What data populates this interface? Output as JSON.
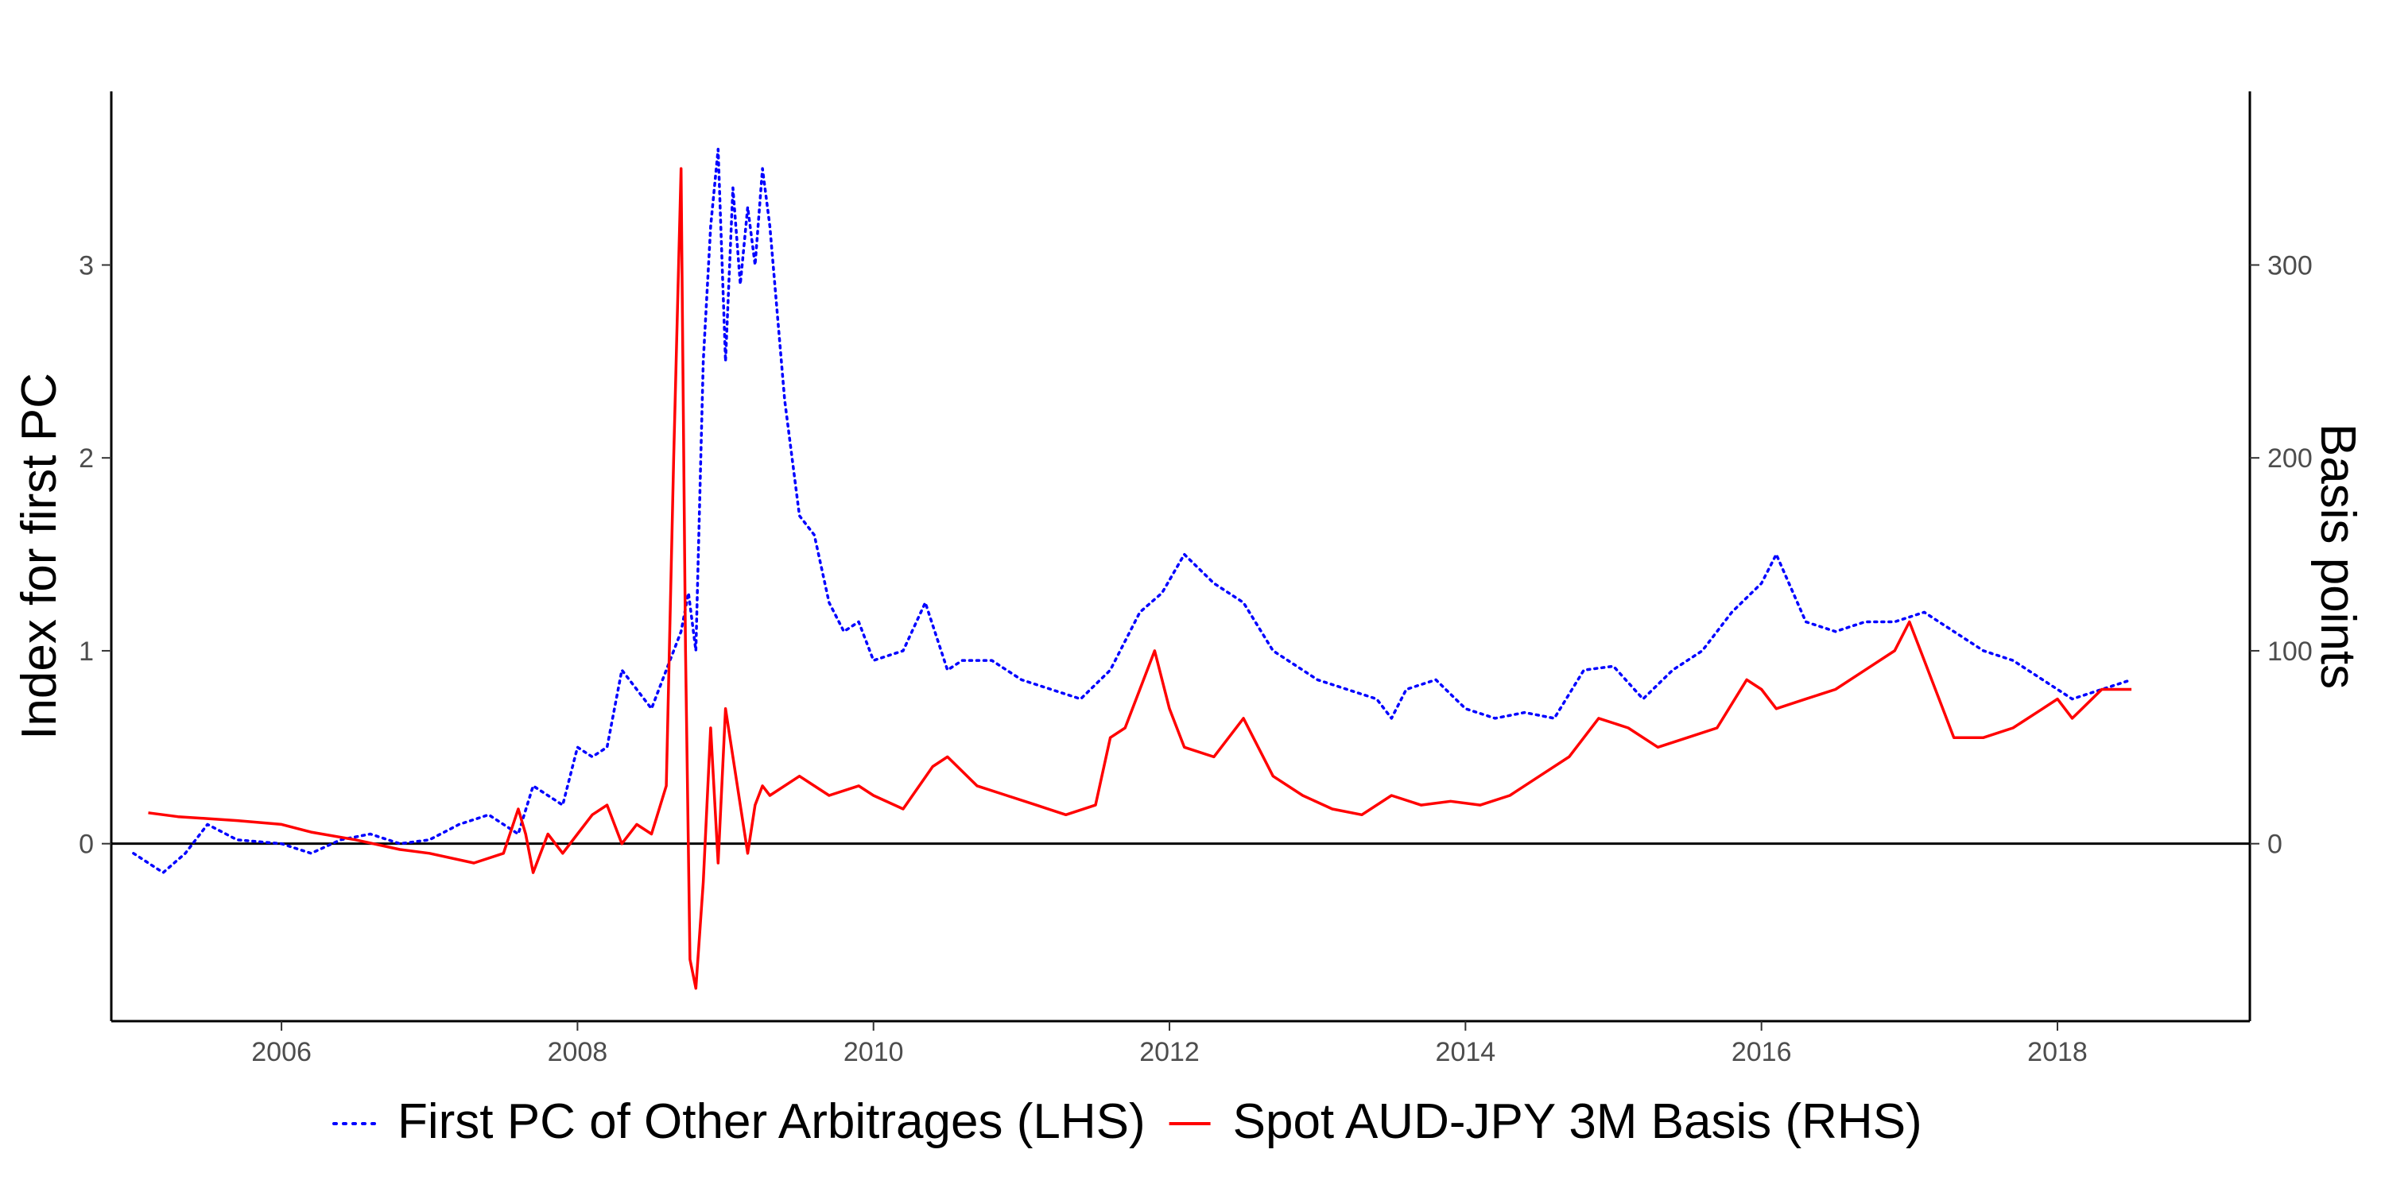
{
  "chart_data": {
    "type": "line",
    "title": "",
    "xlabel": "",
    "ylabel_left": "Index for first PC",
    "ylabel_right": "Basis points",
    "xlim": [
      2004.85,
      2019.3
    ],
    "ylim_left": [
      -0.92,
      3.9
    ],
    "ylim_right": [
      -92,
      390
    ],
    "x_ticks": [
      2006,
      2008,
      2010,
      2012,
      2014,
      2016,
      2018
    ],
    "x_tick_labels": [
      "2006",
      "2008",
      "2010",
      "2012",
      "2014",
      "2016",
      "2018"
    ],
    "y_ticks_left": [
      0,
      1,
      2,
      3
    ],
    "y_tick_labels_left": [
      "0",
      "1",
      "2",
      "3"
    ],
    "y_ticks_right": [
      0,
      100,
      200,
      300
    ],
    "y_tick_labels_right": [
      "0",
      "100",
      "200",
      "300"
    ],
    "reference_line_y": 0,
    "grid": false,
    "legend_position": "bottom",
    "series": [
      {
        "name": "First PC of Other Arbitrages (LHS)",
        "axis": "left",
        "color": "#0000ff",
        "style": "dotted",
        "x": [
          2005.0,
          2005.2,
          2005.35,
          2005.5,
          2005.7,
          2006.0,
          2006.2,
          2006.4,
          2006.6,
          2006.8,
          2007.0,
          2007.2,
          2007.4,
          2007.6,
          2007.7,
          2007.8,
          2007.9,
          2008.0,
          2008.1,
          2008.2,
          2008.3,
          2008.4,
          2008.5,
          2008.6,
          2008.7,
          2008.75,
          2008.8,
          2008.85,
          2008.9,
          2008.95,
          2009.0,
          2009.05,
          2009.1,
          2009.15,
          2009.2,
          2009.25,
          2009.3,
          2009.4,
          2009.5,
          2009.6,
          2009.7,
          2009.8,
          2009.9,
          2010.0,
          2010.2,
          2010.35,
          2010.5,
          2010.6,
          2010.8,
          2011.0,
          2011.2,
          2011.4,
          2011.6,
          2011.8,
          2011.95,
          2012.1,
          2012.3,
          2012.5,
          2012.7,
          2012.9,
          2013.0,
          2013.2,
          2013.4,
          2013.5,
          2013.6,
          2013.8,
          2014.0,
          2014.2,
          2014.4,
          2014.6,
          2014.8,
          2015.0,
          2015.2,
          2015.4,
          2015.6,
          2015.8,
          2016.0,
          2016.1,
          2016.3,
          2016.5,
          2016.7,
          2016.9,
          2017.1,
          2017.3,
          2017.5,
          2017.7,
          2017.9,
          2018.1,
          2018.3,
          2018.5
        ],
        "y": [
          -0.05,
          -0.15,
          -0.05,
          0.1,
          0.02,
          0.0,
          -0.05,
          0.02,
          0.05,
          0.0,
          0.02,
          0.1,
          0.15,
          0.05,
          0.3,
          0.25,
          0.2,
          0.5,
          0.45,
          0.5,
          0.9,
          0.8,
          0.7,
          0.9,
          1.1,
          1.3,
          1.0,
          2.5,
          3.2,
          3.6,
          2.5,
          3.4,
          2.9,
          3.3,
          3.0,
          3.5,
          3.2,
          2.3,
          1.7,
          1.6,
          1.25,
          1.1,
          1.15,
          0.95,
          1.0,
          1.25,
          0.9,
          0.95,
          0.95,
          0.85,
          0.8,
          0.75,
          0.9,
          1.2,
          1.3,
          1.5,
          1.35,
          1.25,
          1.0,
          0.9,
          0.85,
          0.8,
          0.75,
          0.65,
          0.8,
          0.85,
          0.7,
          0.65,
          0.68,
          0.65,
          0.9,
          0.92,
          0.75,
          0.9,
          1.0,
          1.2,
          1.35,
          1.5,
          1.15,
          1.1,
          1.15,
          1.15,
          1.2,
          1.1,
          1.0,
          0.95,
          0.85,
          0.75,
          0.8,
          0.85
        ]
      },
      {
        "name": "Spot AUD-JPY 3M Basis (RHS)",
        "axis": "right",
        "color": "#ff0000",
        "style": "solid",
        "x": [
          2005.1,
          2005.3,
          2005.5,
          2005.7,
          2006.0,
          2006.2,
          2006.5,
          2006.8,
          2007.0,
          2007.3,
          2007.5,
          2007.6,
          2007.65,
          2007.7,
          2007.8,
          2007.9,
          2008.0,
          2008.1,
          2008.2,
          2008.3,
          2008.4,
          2008.5,
          2008.6,
          2008.65,
          2008.7,
          2008.73,
          2008.76,
          2008.8,
          2008.85,
          2008.9,
          2008.95,
          2009.0,
          2009.1,
          2009.15,
          2009.2,
          2009.25,
          2009.3,
          2009.5,
          2009.7,
          2009.9,
          2010.0,
          2010.2,
          2010.4,
          2010.5,
          2010.7,
          2010.9,
          2011.1,
          2011.3,
          2011.5,
          2011.6,
          2011.7,
          2011.8,
          2011.9,
          2012.0,
          2012.1,
          2012.3,
          2012.5,
          2012.7,
          2012.9,
          2013.1,
          2013.3,
          2013.5,
          2013.7,
          2013.9,
          2014.1,
          2014.3,
          2014.5,
          2014.7,
          2014.9,
          2015.1,
          2015.3,
          2015.5,
          2015.7,
          2015.9,
          2016.0,
          2016.1,
          2016.3,
          2016.5,
          2016.7,
          2016.9,
          2017.0,
          2017.2,
          2017.3,
          2017.5,
          2017.7,
          2017.9,
          2018.0,
          2018.1,
          2018.3,
          2018.5
        ],
        "y": [
          16,
          14,
          13,
          12,
          10,
          6,
          2,
          -3,
          -5,
          -10,
          -5,
          18,
          5,
          -15,
          5,
          -5,
          5,
          15,
          20,
          0,
          10,
          5,
          30,
          200,
          350,
          100,
          -60,
          -75,
          -20,
          60,
          -10,
          70,
          20,
          -5,
          20,
          30,
          25,
          35,
          25,
          30,
          25,
          18,
          40,
          45,
          30,
          25,
          20,
          15,
          20,
          55,
          60,
          80,
          100,
          70,
          50,
          45,
          65,
          35,
          25,
          18,
          15,
          25,
          20,
          22,
          20,
          25,
          35,
          45,
          65,
          60,
          50,
          55,
          60,
          85,
          80,
          70,
          75,
          80,
          90,
          100,
          115,
          75,
          55,
          55,
          60,
          70,
          75,
          65,
          80,
          80
        ]
      }
    ]
  }
}
